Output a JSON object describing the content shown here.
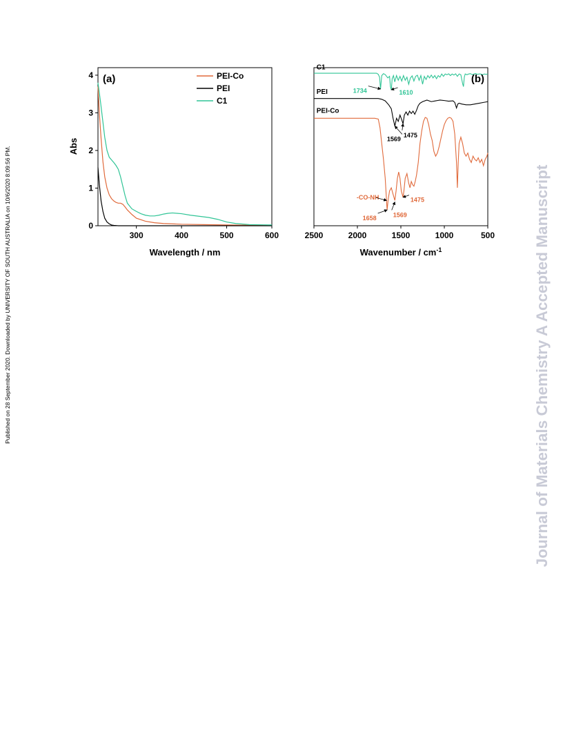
{
  "sidebar_left": {
    "text": "Published on 28 September 2020. Downloaded by UNIVERSITY OF SOUTH AUSTRALIA on 10/6/2020 8:09:56 PM."
  },
  "sidebar_right": {
    "text": "Journal of Materials Chemistry A Accepted Manuscript"
  },
  "colors": {
    "pei_co": "#e0693a",
    "pei": "#000000",
    "c1": "#2ec495",
    "watermark": "#c8cad6"
  },
  "chart_data": [
    {
      "type": "line",
      "panel_label": "(a)",
      "xlabel": "Wavelength / nm",
      "ylabel": "Abs",
      "xlim": [
        215,
        600
      ],
      "ylim": [
        0,
        4.2
      ],
      "xticks": [
        300,
        400,
        500,
        600
      ],
      "yticks": [
        0,
        1,
        2,
        3,
        4
      ],
      "grid": false,
      "legend_position": "top-right",
      "series": [
        {
          "name": "PEI-Co",
          "color": "#e0693a",
          "x": [
            215,
            218,
            222,
            226,
            230,
            235,
            240,
            245,
            250,
            255,
            260,
            265,
            270,
            275,
            280,
            290,
            300,
            320,
            340,
            360,
            380,
            400,
            450,
            500,
            550,
            600
          ],
          "y": [
            3.7,
            3.0,
            2.3,
            1.7,
            1.3,
            1.0,
            0.82,
            0.72,
            0.66,
            0.62,
            0.6,
            0.6,
            0.57,
            0.5,
            0.42,
            0.3,
            0.2,
            0.12,
            0.08,
            0.06,
            0.05,
            0.04,
            0.03,
            0.02,
            0.015,
            0.01
          ]
        },
        {
          "name": "PEI",
          "color": "#000000",
          "x": [
            215,
            218,
            222,
            226,
            230,
            235,
            240,
            245,
            250,
            260,
            300,
            400,
            500,
            600
          ],
          "y": [
            1.55,
            1.1,
            0.65,
            0.38,
            0.2,
            0.1,
            0.05,
            0.02,
            0.01,
            0.0,
            0.0,
            0.0,
            0.0,
            0.0
          ]
        },
        {
          "name": "C1",
          "color": "#2ec495",
          "x": [
            215,
            220,
            225,
            230,
            235,
            240,
            245,
            250,
            255,
            260,
            265,
            270,
            275,
            280,
            290,
            300,
            310,
            320,
            330,
            340,
            350,
            360,
            370,
            380,
            390,
            400,
            420,
            440,
            460,
            480,
            500,
            520,
            550,
            600
          ],
          "y": [
            3.8,
            3.35,
            2.85,
            2.35,
            2.0,
            1.82,
            1.75,
            1.68,
            1.6,
            1.5,
            1.3,
            1.05,
            0.8,
            0.6,
            0.45,
            0.38,
            0.32,
            0.28,
            0.26,
            0.26,
            0.28,
            0.31,
            0.33,
            0.34,
            0.33,
            0.32,
            0.28,
            0.25,
            0.22,
            0.17,
            0.1,
            0.06,
            0.03,
            0.02
          ]
        }
      ]
    },
    {
      "type": "line",
      "panel_label": "(b)",
      "xlabel": "Wavenumber / cm",
      "xlabel_sup": "-1",
      "xlim": [
        2500,
        500
      ],
      "xticks": [
        2500,
        2000,
        1500,
        1000,
        500
      ],
      "grid": false,
      "ylim": [
        0,
        100
      ],
      "series": [
        {
          "name": "C1",
          "color": "#2ec495",
          "x": [
            2500,
            1780,
            1760,
            1745,
            1734,
            1720,
            1700,
            1680,
            1650,
            1630,
            1620,
            1610,
            1600,
            1585,
            1570,
            1550,
            1530,
            1510,
            1490,
            1470,
            1450,
            1430,
            1410,
            1390,
            1370,
            1350,
            1330,
            1310,
            1290,
            1270,
            1250,
            1230,
            1210,
            1190,
            1170,
            1150,
            1130,
            1110,
            1090,
            1070,
            1050,
            1030,
            1010,
            990,
            970,
            950,
            930,
            910,
            890,
            870,
            850,
            830,
            810,
            790,
            780,
            770,
            760,
            740,
            720,
            700,
            680,
            660,
            640,
            620,
            600,
            580,
            560,
            540,
            520,
            500
          ],
          "y": [
            96.5,
            96.5,
            95.8,
            94.0,
            86.5,
            95.0,
            96.2,
            95.6,
            93.5,
            94.5,
            88.0,
            86.0,
            93.0,
            95.0,
            91.0,
            95.0,
            92.0,
            94.5,
            91.5,
            95.0,
            92.0,
            94.0,
            89.5,
            93.5,
            94.8,
            91.5,
            94.5,
            95.2,
            92.0,
            95.0,
            89.5,
            94.5,
            92.5,
            95.0,
            93.5,
            95.3,
            93.5,
            95.0,
            93.0,
            95.0,
            94.0,
            96.0,
            94.5,
            96.0,
            95.5,
            96.1,
            95.0,
            96.0,
            95.3,
            96.1,
            94.5,
            96.0,
            95.5,
            90.0,
            88.0,
            94.0,
            96.0,
            95.5,
            96.0,
            96.2,
            95.6,
            96.0,
            96.3,
            95.8,
            96.0,
            96.0,
            95.5,
            96.0,
            95.8,
            96.0
          ]
        },
        {
          "name": "PEI",
          "color": "#000000",
          "x": [
            2500,
            1760,
            1720,
            1680,
            1640,
            1610,
            1590,
            1569,
            1550,
            1530,
            1510,
            1490,
            1475,
            1460,
            1440,
            1420,
            1400,
            1380,
            1360,
            1340,
            1320,
            1300,
            1280,
            1250,
            1200,
            1150,
            1100,
            1050,
            1000,
            950,
            900,
            880,
            860,
            845,
            830,
            800,
            750,
            700,
            650,
            600,
            550,
            500
          ],
          "y": [
            80.5,
            80.5,
            80.0,
            79.0,
            76.5,
            74.0,
            68.0,
            63.0,
            68.0,
            66.0,
            70.0,
            67.0,
            64.5,
            70.0,
            72.0,
            70.0,
            72.5,
            71.0,
            72.5,
            70.5,
            73.0,
            76.0,
            77.5,
            78.5,
            79.5,
            78.5,
            79.0,
            79.5,
            79.2,
            78.8,
            79.0,
            78.0,
            74.5,
            77.0,
            77.5,
            77.0,
            76.5,
            76.5,
            77.0,
            77.5,
            78.0,
            78.5
          ]
        },
        {
          "name": "PEI-Co",
          "color": "#e0693a",
          "x": [
            2500,
            1800,
            1760,
            1740,
            1720,
            1700,
            1680,
            1665,
            1658,
            1645,
            1630,
            1610,
            1590,
            1569,
            1555,
            1540,
            1525,
            1510,
            1495,
            1480,
            1475,
            1465,
            1450,
            1430,
            1410,
            1395,
            1380,
            1365,
            1350,
            1335,
            1320,
            1300,
            1280,
            1260,
            1240,
            1220,
            1200,
            1180,
            1160,
            1140,
            1120,
            1100,
            1080,
            1060,
            1040,
            1020,
            1000,
            980,
            960,
            940,
            920,
            900,
            880,
            860,
            850,
            840,
            830,
            810,
            790,
            770,
            750,
            730,
            710,
            690,
            670,
            650,
            630,
            610,
            590,
            570,
            550,
            530,
            510,
            500
          ],
          "y": [
            68.0,
            68.0,
            67.5,
            62.0,
            52.0,
            42.0,
            30.0,
            16.0,
            10.0,
            17.0,
            22.0,
            24.0,
            20.0,
            16.0,
            22.0,
            30.0,
            34.0,
            30.0,
            22.0,
            19.0,
            18.0,
            22.0,
            30.0,
            33.0,
            27.0,
            24.0,
            28.0,
            26.0,
            25.0,
            28.0,
            32.0,
            40.0,
            52.0,
            60.0,
            66.0,
            68.5,
            68.0,
            64.0,
            58.0,
            54.0,
            47.0,
            44.0,
            46.0,
            50.0,
            55.0,
            60.0,
            64.0,
            66.5,
            68.0,
            68.5,
            68.0,
            66.0,
            58.0,
            40.0,
            24.0,
            40.0,
            52.0,
            56.0,
            52.0,
            46.0,
            44.0,
            46.0,
            42.0,
            40.0,
            44.0,
            42.0,
            41.0,
            43.0,
            40.0,
            42.0,
            38.0,
            42.0,
            44.0,
            46.0
          ]
        }
      ],
      "series_labels": [
        {
          "text": "C1",
          "x": 2470,
          "y": 99.0
        },
        {
          "text": "PEI",
          "x": 2470,
          "y": 83.5
        },
        {
          "text": "PEI-Co",
          "x": 2470,
          "y": 71.5
        }
      ],
      "annotations": [
        {
          "text": "1734",
          "color": "#2ec495",
          "text_x": 1970,
          "text_y": 84.0,
          "arrow_to_x": 1734,
          "arrow_to_y": 86.5
        },
        {
          "text": "1610",
          "color": "#2ec495",
          "text_x": 1440,
          "text_y": 83.0,
          "arrow_to_x": 1610,
          "arrow_to_y": 86.0
        },
        {
          "text": "1569",
          "color": "#000000",
          "text_x": 1580,
          "text_y": 53.5,
          "arrow_to_x": 1569,
          "arrow_to_y": 63.0
        },
        {
          "text": "1475",
          "color": "#000000",
          "text_x": 1390,
          "text_y": 56.0,
          "arrow_to_x": 1475,
          "arrow_to_y": 64.5
        },
        {
          "text": "-CO-NH",
          "color": "#e0693a",
          "text_x": 1880,
          "text_y": 16.5,
          "arrow_to_x": 1665,
          "arrow_to_y": 16.0
        },
        {
          "text": "1658",
          "color": "#e0693a",
          "text_x": 1860,
          "text_y": 3.5,
          "arrow_to_x": 1658,
          "arrow_to_y": 10.0
        },
        {
          "text": "1569",
          "color": "#e0693a",
          "text_x": 1510,
          "text_y": 5.5,
          "arrow_to_x": 1569,
          "arrow_to_y": 15.0
        },
        {
          "text": "1475",
          "color": "#e0693a",
          "text_x": 1310,
          "text_y": 15.0,
          "arrow_to_x": 1475,
          "arrow_to_y": 18.0
        }
      ]
    }
  ]
}
